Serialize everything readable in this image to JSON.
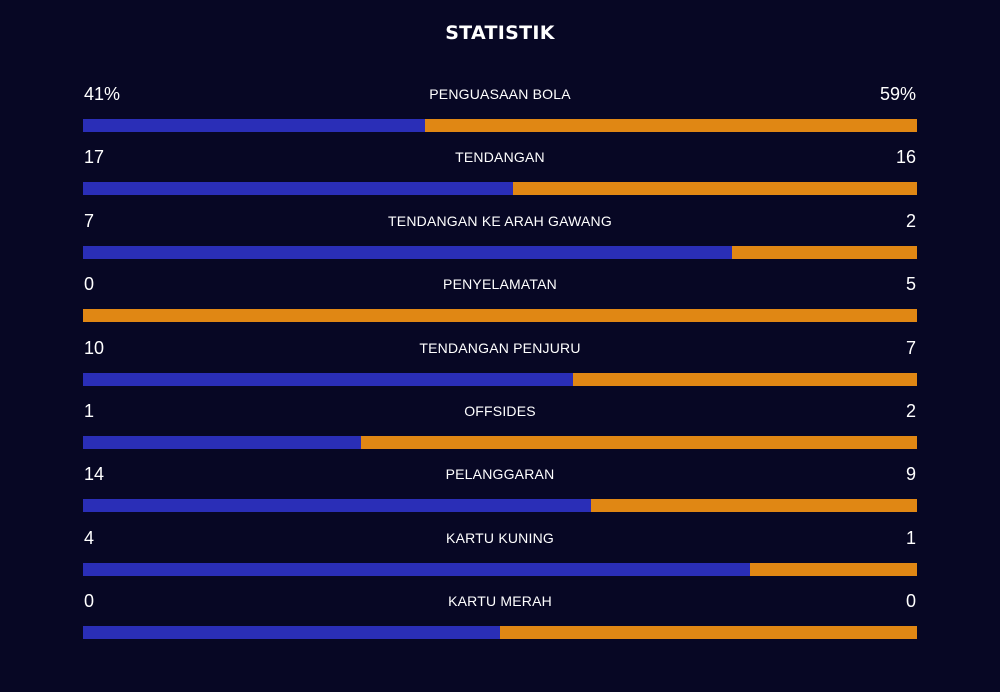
{
  "title": "STATISTIK",
  "colors": {
    "home": "#2a2eb7",
    "away": "#e08714",
    "background": "#070724"
  },
  "stats": [
    {
      "label": "PENGUASAAN BOLA",
      "home": "41%",
      "away": "59%",
      "home_share": 0.41
    },
    {
      "label": "TENDANGAN",
      "home": "17",
      "away": "16",
      "home_share": 0.515
    },
    {
      "label": "TENDANGAN KE ARAH GAWANG",
      "home": "7",
      "away": "2",
      "home_share": 0.778
    },
    {
      "label": "PENYELAMATAN",
      "home": "0",
      "away": "5",
      "home_share": 0.0
    },
    {
      "label": "TENDANGAN PENJURU",
      "home": "10",
      "away": "7",
      "home_share": 0.588
    },
    {
      "label": "OFFSIDES",
      "home": "1",
      "away": "2",
      "home_share": 0.333
    },
    {
      "label": "PELANGGARAN",
      "home": "14",
      "away": "9",
      "home_share": 0.609
    },
    {
      "label": "KARTU KUNING",
      "home": "4",
      "away": "1",
      "home_share": 0.8
    },
    {
      "label": "KARTU MERAH",
      "home": "0",
      "away": "0",
      "home_share": 0.5
    }
  ]
}
